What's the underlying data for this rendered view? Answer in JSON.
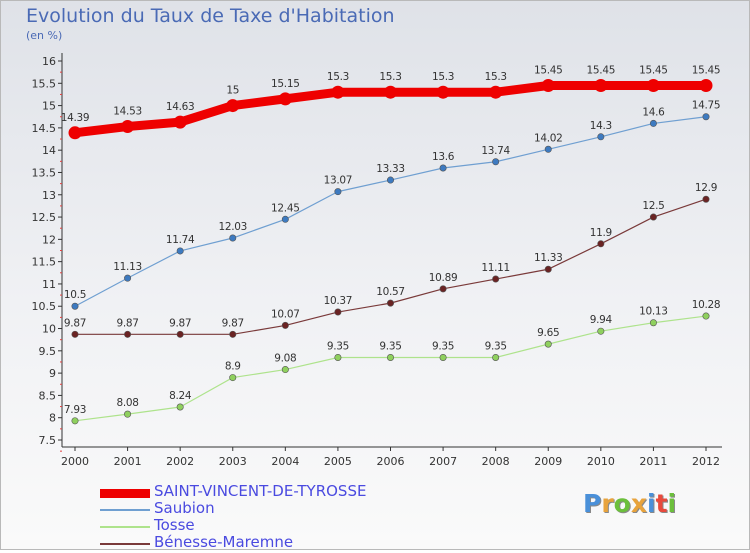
{
  "header": {
    "title": "Evolution du Taux de Taxe d'Habitation",
    "subtitle": "(en %)"
  },
  "logo": {
    "text": "Proxiti",
    "colors": [
      "#4a90d9",
      "#e8a33c",
      "#6cbf3c",
      "#e8a33c",
      "#4a90d9",
      "#e84a3c",
      "#6cbf3c"
    ]
  },
  "chart_data": {
    "type": "line",
    "x": [
      "2000",
      "2001",
      "2002",
      "2003",
      "2004",
      "2005",
      "2006",
      "2007",
      "2008",
      "2009",
      "2010",
      "2011",
      "2012"
    ],
    "ylim": [
      7.5,
      16
    ],
    "yticks": [
      "7.5",
      "8",
      "8.5",
      "9",
      "9.5",
      "10",
      "10.5",
      "11",
      "11.5",
      "12",
      "12.5",
      "13",
      "13.5",
      "14",
      "14.5",
      "15",
      "15.5",
      "16"
    ],
    "grid": false,
    "legend_position": "bottom-left",
    "series": [
      {
        "name": "SAINT-VINCENT-DE-TYROSSE",
        "color": "#ee0000",
        "stroke_width": 9,
        "values": [
          14.39,
          14.53,
          14.63,
          15,
          15.15,
          15.3,
          15.3,
          15.3,
          15.3,
          15.45,
          15.45,
          15.45,
          15.45
        ],
        "labels": [
          "14.39",
          "14.53",
          "14.63",
          "15",
          "15.15",
          "15.3",
          "15.3",
          "15.3",
          "15.3",
          "15.45",
          "15.45",
          "15.45",
          "15.45"
        ]
      },
      {
        "name": "Saubion",
        "color": "#6f9fd1",
        "point_color": "#3d7ac0",
        "stroke_width": 1.2,
        "values": [
          10.5,
          11.13,
          11.74,
          12.03,
          12.45,
          13.07,
          13.33,
          13.6,
          13.74,
          14.02,
          14.3,
          14.6,
          14.75
        ],
        "labels": [
          "10.5",
          "11.13",
          "11.74",
          "12.03",
          "12.45",
          "13.07",
          "13.33",
          "13.6",
          "13.74",
          "14.02",
          "14.3",
          "14.6",
          "14.75"
        ]
      },
      {
        "name": "Tosse",
        "color": "#aee38c",
        "point_color": "#8fd05e",
        "stroke_width": 1.2,
        "values": [
          7.93,
          8.08,
          8.24,
          8.9,
          9.08,
          9.35,
          9.35,
          9.35,
          9.35,
          9.65,
          9.94,
          10.13,
          10.28
        ],
        "labels": [
          "7.93",
          "8.08",
          "8.24",
          "8.9",
          "9.08",
          "9.35",
          "9.35",
          "9.35",
          "9.35",
          "9.65",
          "9.94",
          "10.13",
          "10.28"
        ]
      },
      {
        "name": "Bénesse-Maremne",
        "color": "#7a3a3a",
        "point_color": "#6a2323",
        "stroke_width": 1.2,
        "values": [
          9.87,
          9.87,
          9.87,
          9.87,
          10.07,
          10.37,
          10.57,
          10.89,
          11.11,
          11.33,
          11.9,
          12.5,
          12.9
        ],
        "labels": [
          "9.87",
          "9.87",
          "9.87",
          "9.87",
          "10.07",
          "10.37",
          "10.57",
          "10.89",
          "11.11",
          "11.33",
          "11.9",
          "12.5",
          "12.9"
        ]
      }
    ]
  }
}
